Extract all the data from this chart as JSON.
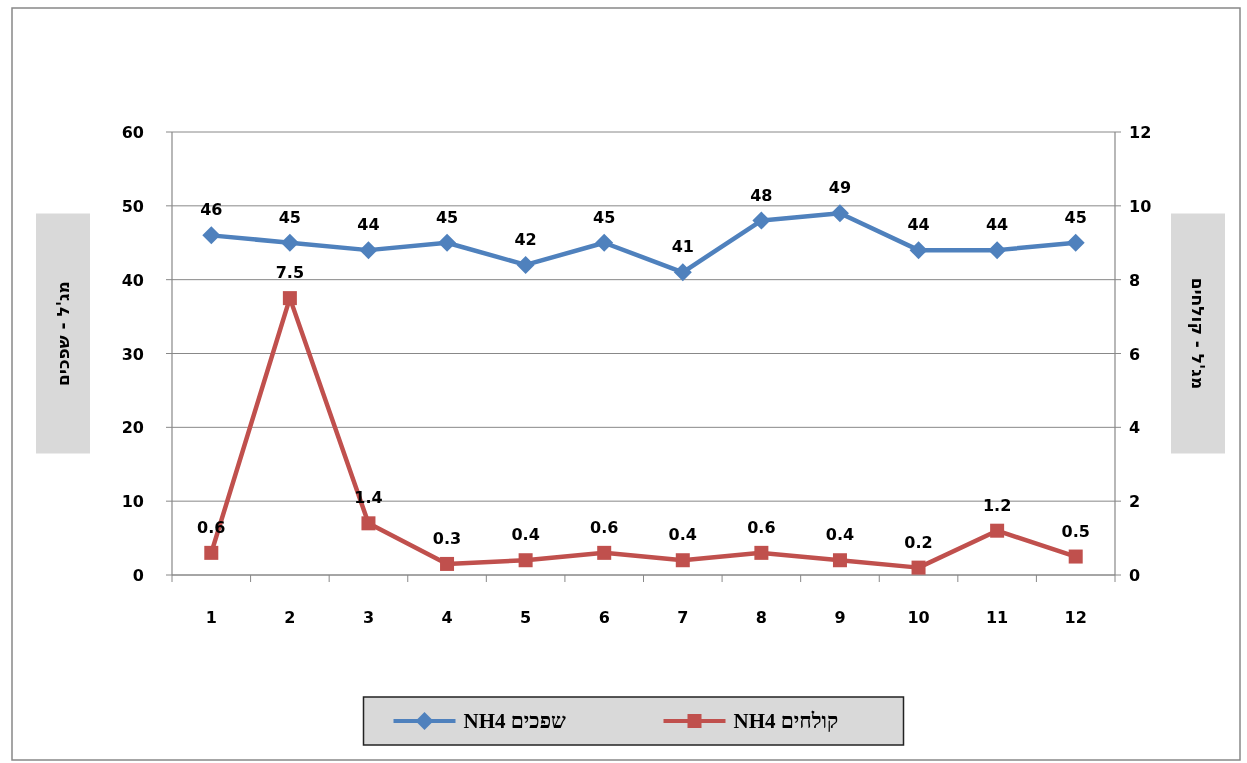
{
  "chart_data": {
    "type": "line",
    "ylabel": "מג'ל - שפכים",
    "y2label": "מג'ל - קולחים",
    "categories": [
      "1",
      "2",
      "3",
      "4",
      "5",
      "6",
      "7",
      "8",
      "9",
      "10",
      "11",
      "12"
    ],
    "series": [
      {
        "name": "NH4 שפכים",
        "color": "#4f81bd",
        "marker": "diamond",
        "values": [
          46,
          45,
          44,
          45,
          42,
          45,
          41,
          48,
          49,
          44,
          44,
          45
        ]
      },
      {
        "name": "NH4 קולחים",
        "color": "#c0504d",
        "marker": "square",
        "axis": "y2",
        "values": [
          0.6,
          7.5,
          1.4,
          0.3,
          0.4,
          0.6,
          0.4,
          0.6,
          0.4,
          0.2,
          1.2,
          0.5
        ]
      }
    ],
    "ylim": [
      0,
      60
    ],
    "yticks": [
      0,
      10,
      20,
      30,
      40,
      50,
      60
    ],
    "y2lim": [
      0,
      12
    ],
    "y2ticks": [
      0,
      2,
      4,
      6,
      8,
      10,
      12
    ],
    "grid": "y",
    "legend": "bottom",
    "data_labels": true,
    "line_style": "solid"
  }
}
